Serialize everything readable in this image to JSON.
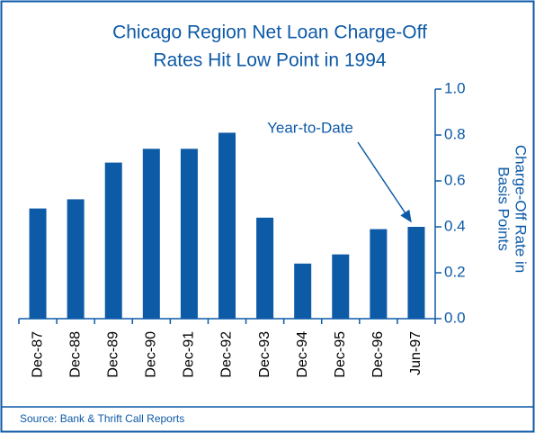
{
  "chart_data": {
    "type": "bar",
    "title": [
      "Chicago Region Net Loan Charge-Off",
      "Rates Hit Low Point in 1994"
    ],
    "y_label": [
      "Charge-Off Rate in",
      "Basis Points"
    ],
    "categories": [
      "Dec-87",
      "Dec-88",
      "Dec-89",
      "Dec-90",
      "Dec-91",
      "Dec-92",
      "Dec-93",
      "Dec-94",
      "Dec-95",
      "Dec-96",
      "Jun-97"
    ],
    "values": [
      0.48,
      0.52,
      0.68,
      0.74,
      0.74,
      0.81,
      0.44,
      0.24,
      0.28,
      0.39,
      0.4
    ],
    "color": "#0d5aa7",
    "ylim": [
      0,
      1.0
    ],
    "yticks": [
      {
        "value": 0,
        "label": "0.0"
      },
      {
        "value": 0.2,
        "label": "0.2"
      },
      {
        "value": 0.4,
        "label": "0.4"
      },
      {
        "value": 0.6,
        "label": "0.6"
      },
      {
        "value": 0.8,
        "label": "0.8"
      },
      {
        "value": 1.0,
        "label": "1.0"
      }
    ],
    "annotation": "Year-to-Date",
    "source": "Source:  Bank & Thrift Call Reports"
  }
}
